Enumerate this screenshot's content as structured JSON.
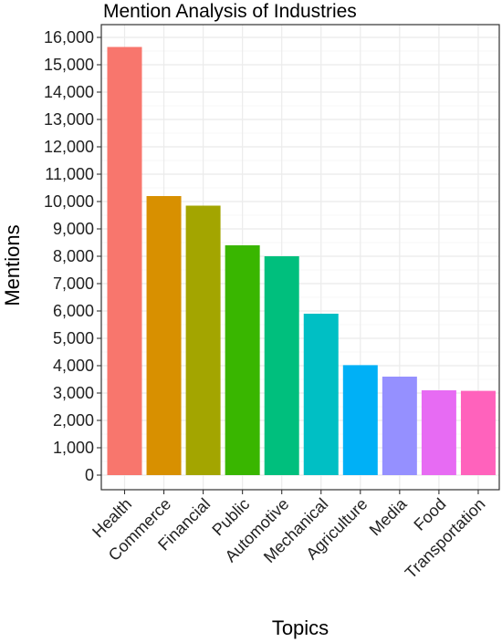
{
  "chart_data": {
    "type": "bar",
    "title": "Mention Analysis of Industries",
    "xlabel": "Topics",
    "ylabel": "Mentions",
    "categories": [
      "Health",
      "Commerce",
      "Financial",
      "Public",
      "Automotive",
      "Mechanical",
      "Agriculture",
      "Media",
      "Food",
      "Transportation"
    ],
    "values": [
      15650,
      10200,
      9850,
      8400,
      8000,
      5900,
      4020,
      3600,
      3100,
      3080
    ],
    "colors": [
      "#F8766D",
      "#D89000",
      "#A3A500",
      "#39B600",
      "#00BF7D",
      "#00BFC4",
      "#00B0F6",
      "#9590FF",
      "#E76BF3",
      "#FF62BC"
    ],
    "ylim": [
      0,
      16000
    ],
    "yticks": [
      "0",
      "1,000",
      "2,000",
      "3,000",
      "4,000",
      "5,000",
      "6,000",
      "7,000",
      "8,000",
      "9,000",
      "10,000",
      "11,000",
      "12,000",
      "13,000",
      "14,000",
      "15,000",
      "16,000"
    ],
    "grid": true,
    "legend": "none"
  }
}
